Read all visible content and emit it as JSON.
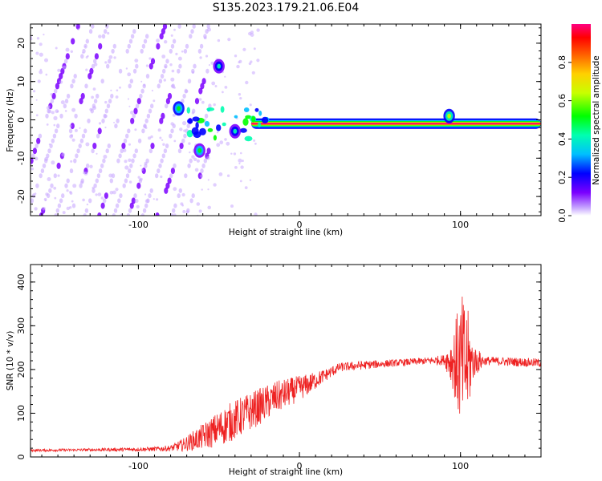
{
  "figure": {
    "title": "S135.2023.179.21.06.E04"
  },
  "chart_data": [
    {
      "type": "heatmap",
      "xlabel": "Height of straight line (km)",
      "ylabel": "Frequency (Hz)",
      "xlim": [
        -167,
        150
      ],
      "ylim": [
        -25,
        25
      ],
      "xticks": [
        -100,
        0,
        100
      ],
      "yticks": [
        -20,
        -10,
        0,
        10,
        20
      ],
      "colorbar": {
        "label": "Normalized spectral amplitude",
        "range": [
          0,
          1
        ],
        "ticks": [
          0.0,
          0.2,
          0.4,
          0.6,
          0.8
        ],
        "colormap": "rainbow",
        "colors": [
          "#c8a8ff",
          "#7b00ff",
          "#0000ff",
          "#00bfff",
          "#00ffb0",
          "#00ff00",
          "#c8ff00",
          "#ffd000",
          "#ff6000",
          "#ff0000",
          "#ff0080"
        ]
      },
      "ridge": {
        "frequency_hz": -1,
        "x_range": [
          -30,
          150
        ],
        "peak_amplitude": 0.95,
        "bursts": [
          {
            "x": -75,
            "frequency_hz": 3,
            "amplitude": 0.3
          },
          {
            "x": -62,
            "frequency_hz": -8,
            "amplitude": 0.25
          },
          {
            "x": -50,
            "frequency_hz": 14,
            "amplitude": 0.2
          },
          {
            "x": -40,
            "frequency_hz": -3,
            "amplitude": 0.2
          },
          {
            "x": 93,
            "frequency_hz": 1,
            "amplitude": 0.35
          }
        ]
      },
      "diagonal_streaks": {
        "x_range": [
          -167,
          -55
        ],
        "slope_hz_per_km": 0.48,
        "amplitude": 0.1
      }
    },
    {
      "type": "line",
      "xlabel": "Height of straight line (km)",
      "ylabel": "SNR (10 * v/v)",
      "xlim": [
        -167,
        150
      ],
      "ylim": [
        0,
        440
      ],
      "xticks": [
        -100,
        0,
        100
      ],
      "yticks": [
        0,
        100,
        200,
        300,
        400
      ],
      "series": [
        {
          "color": "#ee2222",
          "x": [
            -167,
            -140,
            -110,
            -90,
            -80,
            -72,
            -64,
            -55,
            -45,
            -35,
            -25,
            -15,
            -5,
            5,
            15,
            25,
            40,
            60,
            80,
            90,
            95,
            98,
            101,
            104,
            108,
            115,
            130,
            150
          ],
          "mean": [
            15,
            16,
            17,
            18,
            20,
            28,
            40,
            55,
            75,
            95,
            115,
            135,
            150,
            165,
            185,
            205,
            210,
            215,
            220,
            222,
            220,
            215,
            210,
            212,
            218,
            220,
            218,
            215
          ],
          "noise": [
            3,
            3,
            4,
            5,
            7,
            15,
            25,
            35,
            45,
            45,
            42,
            38,
            32,
            25,
            15,
            10,
            10,
            8,
            8,
            12,
            60,
            120,
            160,
            140,
            40,
            10,
            10,
            10
          ]
        }
      ]
    }
  ]
}
